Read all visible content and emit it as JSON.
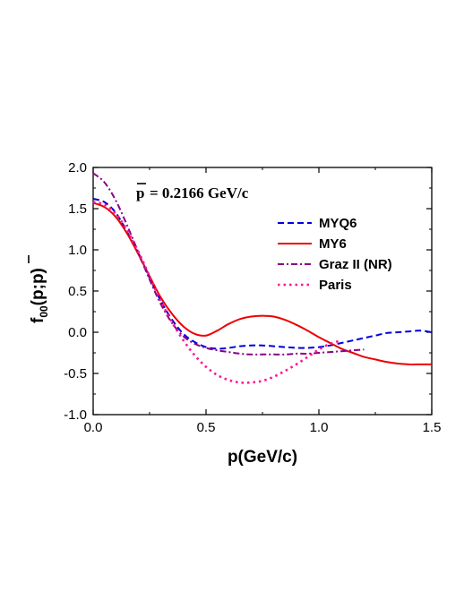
{
  "chart_data": {
    "type": "line",
    "title": "",
    "annotation": "p = 0.2166 GeV/c",
    "annotation_symbol": "p",
    "annotation_value": "= 0.2166 GeV/c",
    "xlabel": "p(GeV/c)",
    "ylabel_main": "f",
    "ylabel_sub": "00",
    "ylabel_args": "(p;p)",
    "xlim": [
      0.0,
      1.5
    ],
    "ylim": [
      -1.0,
      2.0
    ],
    "x_ticks": [
      0.0,
      0.5,
      1.0,
      1.5
    ],
    "x_tick_labels": [
      "0.0",
      "0.5",
      "1.0",
      "1.5"
    ],
    "y_ticks": [
      -1.0,
      -0.5,
      0.0,
      0.5,
      1.0,
      1.5,
      2.0
    ],
    "y_tick_labels": [
      "-1.0",
      "-0.5",
      "0.0",
      "0.5",
      "1.0",
      "1.5",
      "2.0"
    ],
    "grid": false,
    "legend_position": "right",
    "series": [
      {
        "name": "MYQ6",
        "color": "#0000dd",
        "dash": "dash",
        "x": [
          0.0,
          0.05,
          0.1,
          0.15,
          0.2,
          0.25,
          0.3,
          0.35,
          0.4,
          0.45,
          0.5,
          0.55,
          0.6,
          0.65,
          0.7,
          0.75,
          0.8,
          0.85,
          0.9,
          0.95,
          1.0,
          1.05,
          1.1,
          1.15,
          1.2,
          1.25,
          1.3,
          1.35,
          1.4,
          1.45,
          1.5
        ],
        "y": [
          1.62,
          1.58,
          1.45,
          1.22,
          0.95,
          0.66,
          0.38,
          0.15,
          -0.02,
          -0.12,
          -0.18,
          -0.2,
          -0.19,
          -0.17,
          -0.16,
          -0.16,
          -0.17,
          -0.18,
          -0.19,
          -0.19,
          -0.18,
          -0.16,
          -0.13,
          -0.1,
          -0.07,
          -0.04,
          -0.01,
          0.0,
          0.01,
          0.02,
          0.0
        ]
      },
      {
        "name": "MY6",
        "color": "#ee0000",
        "dash": "solid",
        "x": [
          0.0,
          0.05,
          0.1,
          0.15,
          0.2,
          0.25,
          0.3,
          0.35,
          0.4,
          0.45,
          0.5,
          0.55,
          0.6,
          0.65,
          0.7,
          0.75,
          0.8,
          0.85,
          0.9,
          0.95,
          1.0,
          1.05,
          1.1,
          1.15,
          1.2,
          1.25,
          1.3,
          1.35,
          1.4,
          1.45,
          1.5
        ],
        "y": [
          1.57,
          1.52,
          1.4,
          1.2,
          0.95,
          0.68,
          0.42,
          0.22,
          0.07,
          -0.02,
          -0.04,
          0.02,
          0.1,
          0.16,
          0.19,
          0.2,
          0.19,
          0.15,
          0.09,
          0.02,
          -0.06,
          -0.13,
          -0.2,
          -0.25,
          -0.3,
          -0.33,
          -0.36,
          -0.38,
          -0.39,
          -0.39,
          -0.39
        ]
      },
      {
        "name": "Graz II (NR)",
        "color": "#880088",
        "dash": "dashdot",
        "x": [
          0.0,
          0.05,
          0.1,
          0.15,
          0.2,
          0.25,
          0.3,
          0.35,
          0.4,
          0.45,
          0.5,
          0.55,
          0.6,
          0.65,
          0.7,
          0.75,
          0.8,
          0.85,
          0.9,
          0.95,
          1.0,
          1.05,
          1.1,
          1.15,
          1.2
        ],
        "y": [
          1.93,
          1.82,
          1.6,
          1.3,
          0.97,
          0.64,
          0.34,
          0.11,
          -0.05,
          -0.14,
          -0.19,
          -0.22,
          -0.24,
          -0.26,
          -0.27,
          -0.27,
          -0.27,
          -0.27,
          -0.26,
          -0.26,
          -0.25,
          -0.24,
          -0.23,
          -0.22,
          -0.21
        ]
      },
      {
        "name": "Paris",
        "color": "#ff1493",
        "dash": "dot",
        "x": [
          0.0,
          0.05,
          0.1,
          0.15,
          0.2,
          0.25,
          0.3,
          0.35,
          0.4,
          0.45,
          0.5,
          0.55,
          0.6,
          0.65,
          0.7,
          0.75,
          0.8,
          0.85,
          0.9,
          0.95,
          1.0,
          1.05,
          1.1
        ],
        "y": [
          1.58,
          1.55,
          1.44,
          1.24,
          0.98,
          0.68,
          0.38,
          0.12,
          -0.1,
          -0.28,
          -0.42,
          -0.52,
          -0.58,
          -0.61,
          -0.61,
          -0.59,
          -0.54,
          -0.47,
          -0.39,
          -0.3,
          -0.21,
          -0.14,
          -0.1
        ]
      }
    ]
  }
}
